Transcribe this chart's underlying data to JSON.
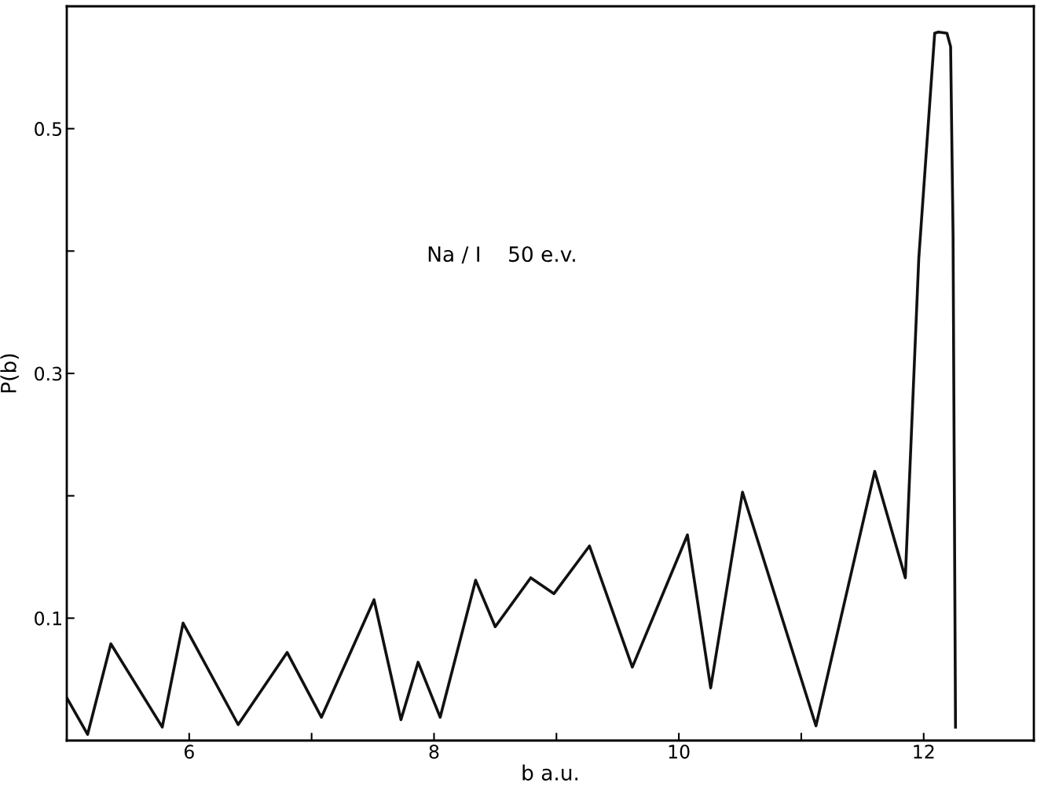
{
  "chart_data": {
    "type": "line",
    "xlabel": "b a.u.",
    "ylabel": "P(b)",
    "xlim": [
      5,
      12.9
    ],
    "ylim": [
      0,
      0.6
    ],
    "xticks": [
      6,
      {
        "value": 7,
        "label": null
      },
      8,
      {
        "value": 9,
        "label": null
      },
      10,
      {
        "value": 11,
        "label": null
      },
      12
    ],
    "yticks": [
      0.1,
      {
        "value": 0.2,
        "label": null
      },
      0.3,
      {
        "value": 0.4,
        "label": null
      },
      0.5
    ],
    "series": [
      {
        "color": "#111111",
        "x": [
          5.0,
          5.17,
          5.36,
          5.78,
          5.95,
          6.4,
          6.8,
          7.08,
          7.51,
          7.73,
          7.87,
          8.05,
          8.34,
          8.5,
          8.79,
          8.98,
          9.27,
          9.62,
          10.07,
          10.26,
          10.52,
          11.12,
          11.6,
          11.85,
          11.96,
          12.09,
          12.12,
          12.19,
          12.22,
          12.24,
          12.26
        ],
        "values": [
          0.035,
          0.005,
          0.079,
          0.011,
          0.096,
          0.013,
          0.072,
          0.019,
          0.115,
          0.017,
          0.064,
          0.019,
          0.131,
          0.093,
          0.133,
          0.12,
          0.159,
          0.06,
          0.168,
          0.043,
          0.203,
          0.012,
          0.22,
          0.133,
          0.394,
          0.578,
          0.579,
          0.578,
          0.567,
          0.413,
          0.011
        ]
      }
    ],
    "annotations": [
      "Na / I    50 e.v."
    ],
    "grid": false,
    "legend": false,
    "marker": "none",
    "line_style": "solid"
  }
}
